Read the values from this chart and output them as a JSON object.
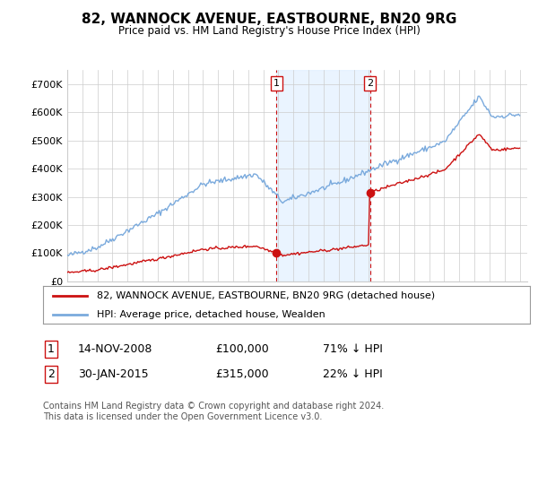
{
  "title": "82, WANNOCK AVENUE, EASTBOURNE, BN20 9RG",
  "subtitle": "Price paid vs. HM Land Registry's House Price Index (HPI)",
  "ylim": [
    0,
    750000
  ],
  "yticks": [
    0,
    100000,
    200000,
    300000,
    400000,
    500000,
    600000,
    700000
  ],
  "ytick_labels": [
    "£0",
    "£100K",
    "£200K",
    "£300K",
    "£400K",
    "£500K",
    "£600K",
    "£700K"
  ],
  "hpi_color": "#7aaadd",
  "price_color": "#cc1111",
  "sale_1_year_float": 2008.876,
  "sale_1_price": 100000,
  "sale_2_year_float": 2015.08,
  "sale_2_price": 315000,
  "legend_label_red": "82, WANNOCK AVENUE, EASTBOURNE, BN20 9RG (detached house)",
  "legend_label_blue": "HPI: Average price, detached house, Wealden",
  "table_row1": [
    "1",
    "14-NOV-2008",
    "£100,000",
    "71% ↓ HPI"
  ],
  "table_row2": [
    "2",
    "30-JAN-2015",
    "£315,000",
    "22% ↓ HPI"
  ],
  "footnote": "Contains HM Land Registry data © Crown copyright and database right 2024.\nThis data is licensed under the Open Government Licence v3.0.",
  "bg_color": "#ffffff",
  "grid_color": "#cccccc",
  "shade_color": "#ddeeff",
  "xlim_left": 1995.0,
  "xlim_right": 2025.5
}
